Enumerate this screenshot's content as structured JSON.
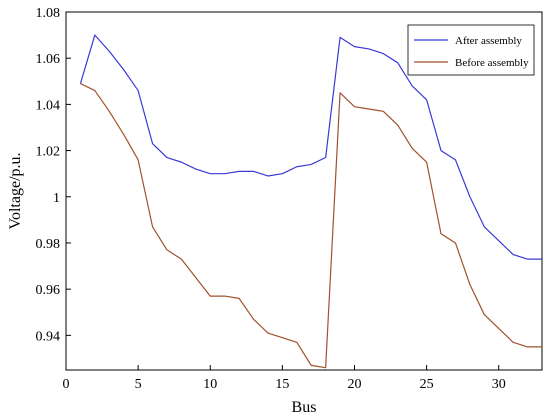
{
  "chart_data": {
    "type": "line",
    "xlabel": "Bus",
    "ylabel": "Voltage/p.u.",
    "xlim": [
      0,
      33
    ],
    "ylim": [
      0.925,
      1.08
    ],
    "xticks": [
      0,
      5,
      10,
      15,
      20,
      25,
      30
    ],
    "yticks": [
      0.94,
      0.96,
      0.98,
      1,
      1.02,
      1.04,
      1.06,
      1.08
    ],
    "ytick_labels": [
      "0.94",
      "0.96",
      "0.98",
      "1",
      "1.02",
      "1.04",
      "1.06",
      "1.08"
    ],
    "legend_position": "top-right",
    "grid": false,
    "x": [
      1,
      2,
      3,
      4,
      5,
      6,
      7,
      8,
      9,
      10,
      11,
      12,
      13,
      14,
      15,
      16,
      17,
      18,
      19,
      20,
      21,
      22,
      23,
      24,
      25,
      26,
      27,
      28,
      29,
      30,
      31,
      32,
      33
    ],
    "series": [
      {
        "name": "After assembly",
        "color": "#3a3ad6",
        "values": [
          1.049,
          1.07,
          1.063,
          1.055,
          1.046,
          1.023,
          1.017,
          1.015,
          1.012,
          1.01,
          1.01,
          1.011,
          1.011,
          1.009,
          1.01,
          1.013,
          1.014,
          1.017,
          1.069,
          1.065,
          1.064,
          1.062,
          1.058,
          1.048,
          1.042,
          1.02,
          1.016,
          1.0,
          0.987,
          0.981,
          0.975,
          0.973,
          0.973
        ]
      },
      {
        "name": "Before assembly",
        "color": "#a0522d",
        "values": [
          1.049,
          1.046,
          1.037,
          1.027,
          1.016,
          0.987,
          0.977,
          0.973,
          0.965,
          0.957,
          0.957,
          0.956,
          0.947,
          0.941,
          0.939,
          0.937,
          0.927,
          0.926,
          1.045,
          1.039,
          1.038,
          1.037,
          1.031,
          1.021,
          1.015,
          0.984,
          0.98,
          0.962,
          0.949,
          0.943,
          0.937,
          0.935,
          0.935
        ]
      }
    ]
  }
}
